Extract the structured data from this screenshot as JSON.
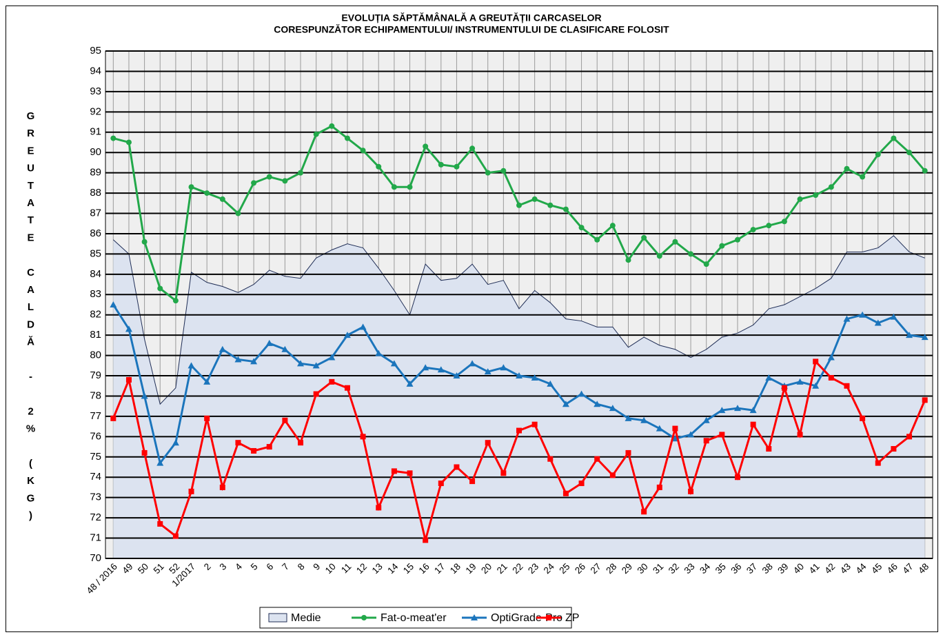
{
  "chart_data": {
    "type": "line",
    "title": "EVOLUȚIA SĂPTĂMÂNALĂ A GREUTĂȚII CARCASELOR",
    "subtitle": "CORESPUNZĂTOR ECHIPAMENTULUI/ INSTRUMENTULUI DE CLASIFICARE  FOLOSIT",
    "y_label": "GREUTATE CALDĂ - 2% (KG)",
    "categories": [
      "48 / 2016",
      "49",
      "50",
      "51",
      "52",
      "1/2017",
      "2",
      "3",
      "4",
      "5",
      "6",
      "7",
      "8",
      "9",
      "10",
      "11",
      "12",
      "13",
      "14",
      "15",
      "16",
      "17",
      "18",
      "19",
      "20",
      "21",
      "22",
      "23",
      "24",
      "25",
      "26",
      "27",
      "28",
      "29",
      "30",
      "31",
      "32",
      "33",
      "34",
      "35",
      "36",
      "37",
      "38",
      "39",
      "40",
      "41",
      "42",
      "43",
      "44",
      "45",
      "46",
      "47",
      "48"
    ],
    "series": [
      {
        "name": "Medie",
        "style": "area",
        "color": "#1f2d55",
        "fill": "#dce3f0",
        "values": [
          85.7,
          85.0,
          80.8,
          77.6,
          78.4,
          84.1,
          83.6,
          83.4,
          83.1,
          83.5,
          84.2,
          83.9,
          83.8,
          84.8,
          85.2,
          85.5,
          85.3,
          84.3,
          83.2,
          82.0,
          84.5,
          83.7,
          83.8,
          84.5,
          83.5,
          83.7,
          82.3,
          83.2,
          82.6,
          81.8,
          81.7,
          81.4,
          81.4,
          80.4,
          80.9,
          80.5,
          80.3,
          79.9,
          80.3,
          80.9,
          81.1,
          81.5,
          82.3,
          82.5,
          82.9,
          83.3,
          83.8,
          85.1,
          85.1,
          85.3,
          85.9,
          85.1,
          84.8
        ]
      },
      {
        "name": "Fat-o-meat'er",
        "style": "line",
        "marker": "circle",
        "color": "#22a84a",
        "values": [
          90.7,
          90.5,
          85.6,
          83.3,
          82.7,
          88.3,
          88.0,
          87.7,
          87.0,
          88.5,
          88.8,
          88.6,
          89.0,
          90.9,
          91.3,
          90.7,
          90.1,
          89.3,
          88.3,
          88.3,
          90.3,
          89.4,
          89.3,
          90.2,
          89.0,
          89.1,
          87.4,
          87.7,
          87.4,
          87.2,
          86.3,
          85.7,
          86.4,
          84.7,
          85.8,
          84.9,
          85.6,
          85.0,
          84.5,
          85.4,
          85.7,
          86.2,
          86.4,
          86.6,
          87.7,
          87.9,
          88.3,
          89.2,
          88.8,
          89.9,
          90.7,
          90.0,
          89.1
        ]
      },
      {
        "name": "OptiGrade-Pro",
        "style": "line",
        "marker": "triangle",
        "color": "#1b75bc",
        "values": [
          82.5,
          81.3,
          78.0,
          74.7,
          75.7,
          79.5,
          78.7,
          80.3,
          79.8,
          79.7,
          80.6,
          80.3,
          79.6,
          79.5,
          79.9,
          81.0,
          81.4,
          80.1,
          79.6,
          78.6,
          79.4,
          79.3,
          79.0,
          79.6,
          79.2,
          79.4,
          79.0,
          78.9,
          78.6,
          77.6,
          78.1,
          77.6,
          77.4,
          76.9,
          76.8,
          76.4,
          75.9,
          76.1,
          76.8,
          77.3,
          77.4,
          77.3,
          78.9,
          78.5,
          78.7,
          78.5,
          79.9,
          81.8,
          82.0,
          81.6,
          81.9,
          81.0,
          80.9
        ]
      },
      {
        "name": "ZP",
        "style": "line",
        "marker": "square",
        "color": "#ff0000",
        "values": [
          76.9,
          78.8,
          75.2,
          71.7,
          71.1,
          73.3,
          76.9,
          73.5,
          75.7,
          75.3,
          75.5,
          76.8,
          75.7,
          78.1,
          78.7,
          78.4,
          76.0,
          72.5,
          74.3,
          74.2,
          70.9,
          73.7,
          74.5,
          73.8,
          75.7,
          74.2,
          76.3,
          76.6,
          74.9,
          73.2,
          73.7,
          74.9,
          74.1,
          75.2,
          72.3,
          73.5,
          76.4,
          73.3,
          75.8,
          76.1,
          74.0,
          76.6,
          75.4,
          78.4,
          76.1,
          79.7,
          78.9,
          78.5,
          76.9,
          74.7,
          75.4,
          76.0,
          77.8
        ]
      }
    ],
    "ylim": [
      70,
      95
    ],
    "yticks": [
      70,
      71,
      72,
      73,
      74,
      75,
      76,
      77,
      78,
      79,
      80,
      81,
      82,
      83,
      84,
      85,
      86,
      87,
      88,
      89,
      90,
      91,
      92,
      93,
      94,
      95
    ],
    "grid": true,
    "legend": "bottom"
  }
}
